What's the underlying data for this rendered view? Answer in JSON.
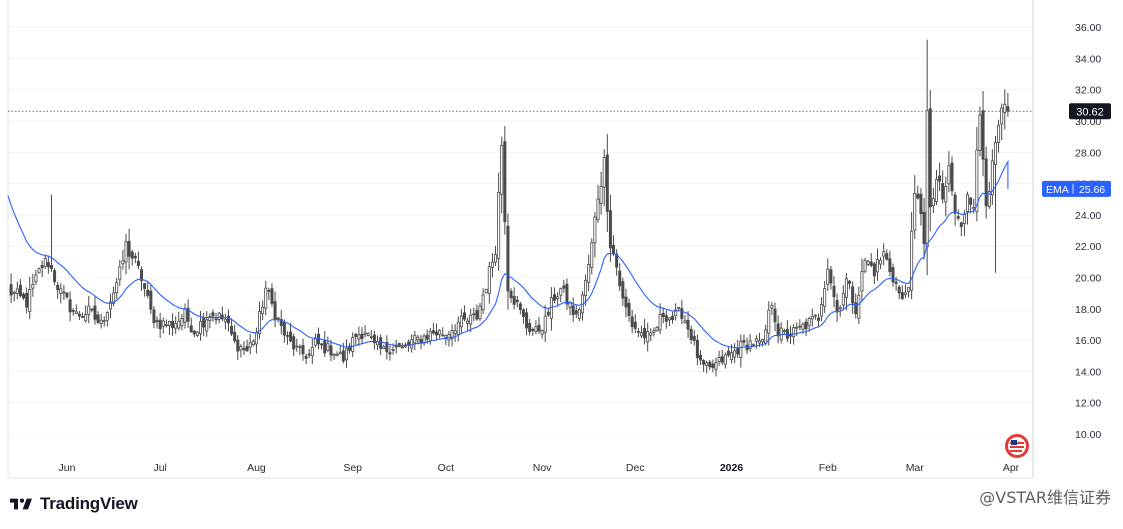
{
  "brand": {
    "name": "TradingView"
  },
  "watermark": "@VSTAR维信证券",
  "price_label": {
    "text": "30.62",
    "bg": "#131722"
  },
  "ema_label": {
    "name": "EMA",
    "value": "25.66",
    "bg": "#2962ff"
  },
  "colors": {
    "up": "#ffffff",
    "down": "#4a4a4a",
    "wick": "#4a4a4a",
    "ema": "#2962ff",
    "grid": "#e0e3eb"
  },
  "chart_data": {
    "type": "candlestick",
    "y_ticks": [
      "10.00",
      "12.00",
      "14.00",
      "16.00",
      "18.00",
      "20.00",
      "22.00",
      "24.00",
      "26.00",
      "28.00",
      "30.00",
      "32.00",
      "34.00",
      "36.00"
    ],
    "ylim": [
      8,
      38
    ],
    "x_ticks": [
      {
        "label": "Jun",
        "day": 19
      },
      {
        "label": "Jul",
        "day": 49
      },
      {
        "label": "Aug",
        "day": 80
      },
      {
        "label": "Sep",
        "day": 111
      },
      {
        "label": "Oct",
        "day": 141
      },
      {
        "label": "Nov",
        "day": 172
      },
      {
        "label": "Dec",
        "day": 202
      },
      {
        "label": "2026",
        "day": 233,
        "bold": true
      },
      {
        "label": "Feb",
        "day": 264
      },
      {
        "label": "Mar",
        "day": 292
      },
      {
        "label": "Apr",
        "day": 323
      }
    ],
    "last_price": 30.62,
    "ema_last": 25.66,
    "keypoints": [
      [
        0,
        19.2
      ],
      [
        6,
        18.4
      ],
      [
        11,
        20.8
      ],
      [
        13,
        21.0
      ],
      [
        17,
        19.0
      ],
      [
        22,
        17.6
      ],
      [
        26,
        17.8
      ],
      [
        30,
        17.0
      ],
      [
        36,
        20.2
      ],
      [
        38,
        22.0
      ],
      [
        40,
        21.3
      ],
      [
        43,
        20.0
      ],
      [
        46,
        17.8
      ],
      [
        48,
        17.1
      ],
      [
        53,
        17.0
      ],
      [
        57,
        17.6
      ],
      [
        60,
        16.6
      ],
      [
        65,
        17.7
      ],
      [
        70,
        17.3
      ],
      [
        73,
        15.8
      ],
      [
        77,
        15.3
      ],
      [
        80,
        16.5
      ],
      [
        83,
        19.3
      ],
      [
        87,
        17.2
      ],
      [
        90,
        16.0
      ],
      [
        94,
        15.2
      ],
      [
        97,
        15.0
      ],
      [
        99,
        15.8
      ],
      [
        102,
        15.5
      ],
      [
        105,
        15.3
      ],
      [
        108,
        14.8
      ],
      [
        112,
        16.3
      ],
      [
        115,
        16.6
      ],
      [
        118,
        15.6
      ],
      [
        121,
        15.3
      ],
      [
        124,
        15.6
      ],
      [
        127,
        15.4
      ],
      [
        130,
        15.9
      ],
      [
        133,
        16.1
      ],
      [
        137,
        16.5
      ],
      [
        141,
        16.4
      ],
      [
        145,
        17.1
      ],
      [
        148,
        17.2
      ],
      [
        151,
        17.5
      ],
      [
        155,
        20.3
      ],
      [
        157,
        22.0
      ],
      [
        159,
        28.6
      ],
      [
        161,
        19.5
      ],
      [
        164,
        18.2
      ],
      [
        167,
        16.9
      ],
      [
        170,
        16.5
      ],
      [
        173,
        17.2
      ],
      [
        176,
        18.8
      ],
      [
        178,
        19.2
      ],
      [
        181,
        18.2
      ],
      [
        183,
        17.4
      ],
      [
        186,
        19.6
      ],
      [
        188,
        22.0
      ],
      [
        190,
        25.3
      ],
      [
        192,
        27.3
      ],
      [
        194,
        22.3
      ],
      [
        196,
        20.7
      ],
      [
        198,
        18.5
      ],
      [
        201,
        17.0
      ],
      [
        204,
        16.4
      ],
      [
        207,
        16.1
      ],
      [
        211,
        17.7
      ],
      [
        214,
        17.4
      ],
      [
        217,
        17.8
      ],
      [
        220,
        16.3
      ],
      [
        223,
        14.4
      ],
      [
        226,
        14.1
      ],
      [
        229,
        14.6
      ],
      [
        233,
        15.1
      ],
      [
        236,
        15.6
      ],
      [
        240,
        15.9
      ],
      [
        243,
        15.7
      ],
      [
        246,
        18.5
      ],
      [
        248,
        16.5
      ],
      [
        251,
        16.3
      ],
      [
        254,
        16.6
      ],
      [
        258,
        17.1
      ],
      [
        261,
        17.5
      ],
      [
        264,
        20.8
      ],
      [
        267,
        17.8
      ],
      [
        270,
        19.8
      ],
      [
        273,
        18.1
      ],
      [
        276,
        21.1
      ],
      [
        279,
        20.5
      ],
      [
        282,
        21.5
      ],
      [
        285,
        20.1
      ],
      [
        288,
        18.4
      ],
      [
        290,
        19.8
      ],
      [
        292,
        25.0
      ],
      [
        294,
        24.4
      ],
      [
        295,
        22.5
      ],
      [
        296,
        30.4
      ],
      [
        297,
        24.0
      ],
      [
        299,
        26.3
      ],
      [
        301,
        24.8
      ],
      [
        303,
        26.9
      ],
      [
        305,
        24.1
      ],
      [
        307,
        23.0
      ],
      [
        309,
        25.6
      ],
      [
        311,
        24.9
      ],
      [
        313,
        30.4
      ],
      [
        315,
        25.2
      ],
      [
        317,
        26.8
      ],
      [
        319,
        29.6
      ],
      [
        321,
        30.62
      ]
    ],
    "ema_period": 20
  }
}
